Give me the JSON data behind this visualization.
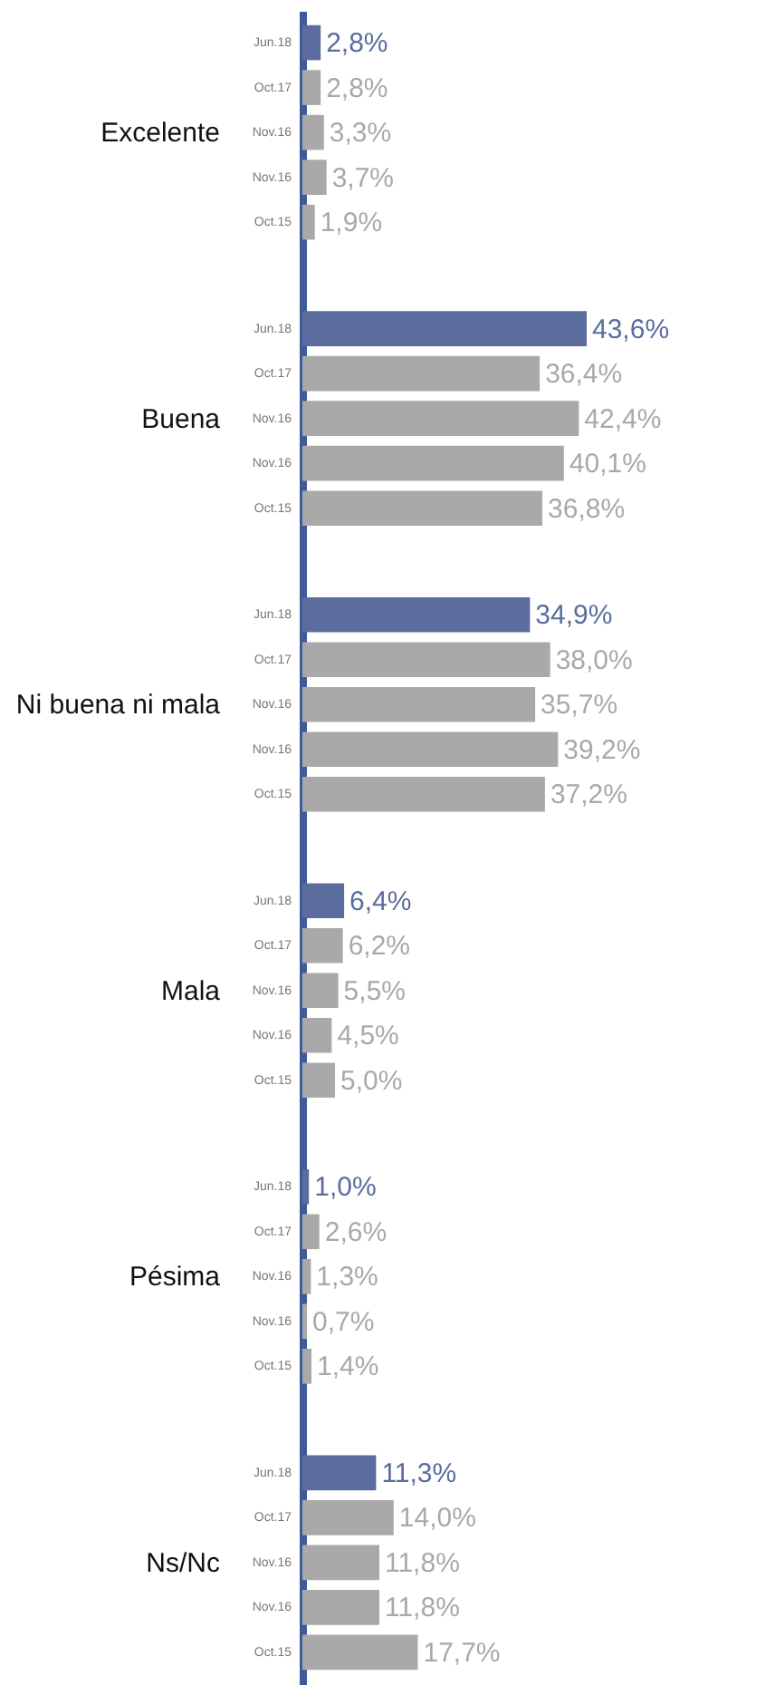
{
  "chart_data": {
    "type": "bar",
    "orientation": "horizontal",
    "legend": false,
    "categories": [
      "Excelente",
      "Buena",
      "Ni buena ni mala",
      "Mala",
      "Pésima",
      "Ns/Nc"
    ],
    "series": [
      {
        "name": "Jun.18",
        "color": "#5a6d9e",
        "values": [
          2.8,
          43.6,
          34.9,
          6.4,
          1.0,
          11.3
        ],
        "value_labels": [
          "2,8%",
          "43,6%",
          "34,9%",
          "6,4%",
          "1,0%",
          "11,3%"
        ]
      },
      {
        "name": "Oct.17",
        "color": "#a9a9a9",
        "values": [
          2.8,
          36.4,
          38.0,
          6.2,
          2.6,
          14.0
        ],
        "value_labels": [
          "2,8%",
          "36,4%",
          "38,0%",
          "6,2%",
          "2,6%",
          "14,0%"
        ]
      },
      {
        "name": "Nov.16",
        "color": "#a9a9a9",
        "values": [
          3.3,
          42.4,
          35.7,
          5.5,
          1.3,
          11.8
        ],
        "value_labels": [
          "3,3%",
          "42,4%",
          "35,7%",
          "5,5%",
          "1,3%",
          "11,8%"
        ]
      },
      {
        "name": "Nov.16",
        "color": "#a9a9a9",
        "values": [
          3.7,
          40.1,
          39.2,
          4.5,
          0.7,
          11.8
        ],
        "value_labels": [
          "3,7%",
          "40,1%",
          "39,2%",
          "4,5%",
          "0,7%",
          "11,8%"
        ]
      },
      {
        "name": "Oct.15",
        "color": "#a9a9a9",
        "values": [
          1.9,
          36.8,
          37.2,
          5.0,
          1.4,
          17.7
        ],
        "value_labels": [
          "1,9%",
          "36,8%",
          "37,2%",
          "5,0%",
          "1,4%",
          "17,7%"
        ]
      }
    ]
  }
}
